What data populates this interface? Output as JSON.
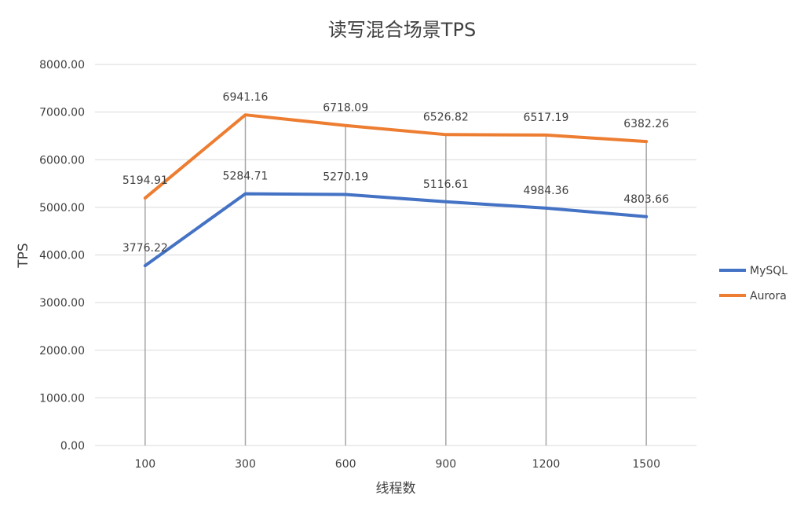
{
  "chart_data": {
    "type": "line",
    "title": "读写混合场景TPS",
    "xlabel": "线程数",
    "ylabel": "TPS",
    "categories": [
      "100",
      "300",
      "600",
      "900",
      "1200",
      "1500"
    ],
    "y_ticks": [
      "0.00",
      "1000.00",
      "2000.00",
      "3000.00",
      "4000.00",
      "5000.00",
      "6000.00",
      "7000.00",
      "8000.00"
    ],
    "ylim": [
      0,
      8000
    ],
    "grid": true,
    "legend_position": "right",
    "series": [
      {
        "name": "MySQL",
        "color": "#4472c4",
        "values": [
          3776.22,
          5284.71,
          5270.19,
          5116.61,
          4984.36,
          4803.66
        ],
        "labels": [
          "3776.22",
          "5284.71",
          "5270.19",
          "5116.61",
          "4984.36",
          "4803.66"
        ]
      },
      {
        "name": "Aurora",
        "color": "#ed7d31",
        "values": [
          5194.91,
          6941.16,
          6718.09,
          6526.82,
          6517.19,
          6382.26
        ],
        "labels": [
          "5194.91",
          "6941.16",
          "6718.09",
          "6526.82",
          "6517.19",
          "6382.26"
        ]
      }
    ]
  }
}
